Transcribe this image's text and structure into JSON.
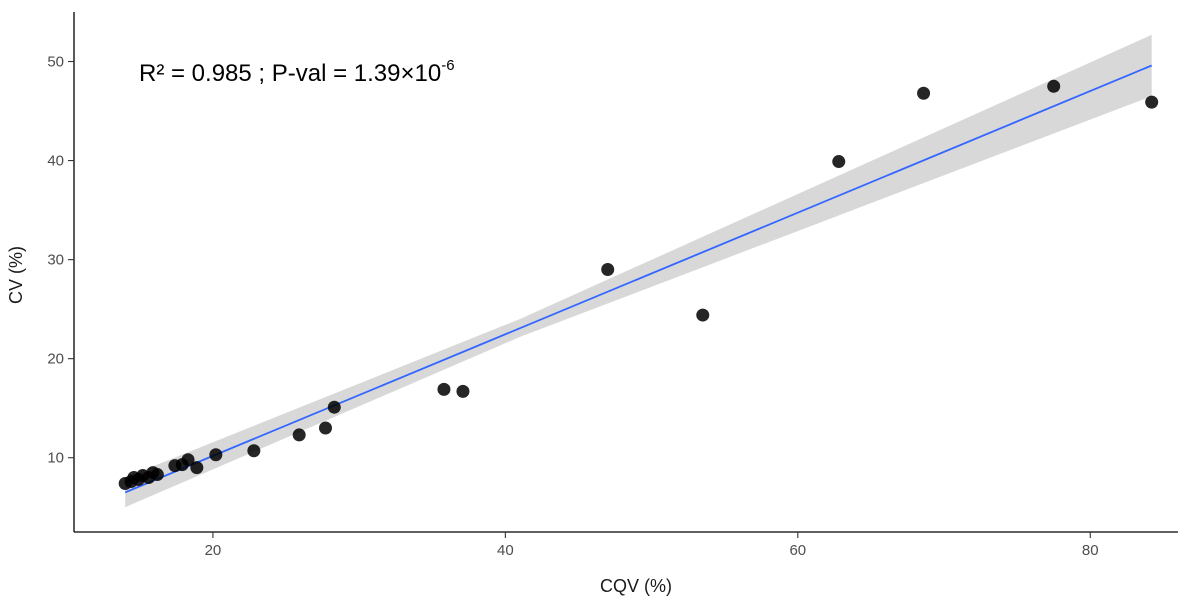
{
  "chart_data": {
    "type": "scatter",
    "title": "",
    "xlabel": "CQV (%)",
    "ylabel": "CV (%)",
    "xlim": [
      10.5,
      86
    ],
    "ylim": [
      2.5,
      55
    ],
    "x_ticks": [
      20,
      40,
      60,
      80
    ],
    "y_ticks": [
      10,
      20,
      30,
      40,
      50
    ],
    "grid": false,
    "legend": "none",
    "annotation": {
      "main": "R² = 0.985 ; P-val = 1.39×10",
      "superscript": "-6"
    },
    "points": [
      {
        "x": 14.0,
        "y": 7.4
      },
      {
        "x": 14.4,
        "y": 7.6
      },
      {
        "x": 14.6,
        "y": 8.0
      },
      {
        "x": 14.9,
        "y": 7.8
      },
      {
        "x": 15.2,
        "y": 8.2
      },
      {
        "x": 15.6,
        "y": 8.0
      },
      {
        "x": 15.9,
        "y": 8.5
      },
      {
        "x": 16.2,
        "y": 8.3
      },
      {
        "x": 17.4,
        "y": 9.2
      },
      {
        "x": 17.9,
        "y": 9.3
      },
      {
        "x": 18.3,
        "y": 9.8
      },
      {
        "x": 18.9,
        "y": 9.0
      },
      {
        "x": 20.2,
        "y": 10.3
      },
      {
        "x": 22.8,
        "y": 10.7
      },
      {
        "x": 25.9,
        "y": 12.3
      },
      {
        "x": 27.7,
        "y": 13.0
      },
      {
        "x": 28.3,
        "y": 15.1
      },
      {
        "x": 35.8,
        "y": 16.9
      },
      {
        "x": 37.1,
        "y": 16.7
      },
      {
        "x": 47.0,
        "y": 29.0
      },
      {
        "x": 53.5,
        "y": 24.4
      },
      {
        "x": 62.8,
        "y": 39.9
      },
      {
        "x": 68.6,
        "y": 46.8
      },
      {
        "x": 77.5,
        "y": 47.5
      },
      {
        "x": 84.2,
        "y": 45.9
      }
    ],
    "fit": {
      "x_start": 14.0,
      "y_start": 6.5,
      "x_end": 84.2,
      "y_end": 49.6,
      "ci_lower_start": 5.0,
      "ci_upper_start": 8.0,
      "ci_lower_mid": 22.2,
      "ci_upper_mid": 24.0,
      "x_mid": 41.0,
      "ci_lower_end": 46.5,
      "ci_upper_end": 52.7
    },
    "colors": {
      "points": "#000000",
      "fit_line": "#3366ff",
      "ci_band": "#bebebe"
    }
  }
}
